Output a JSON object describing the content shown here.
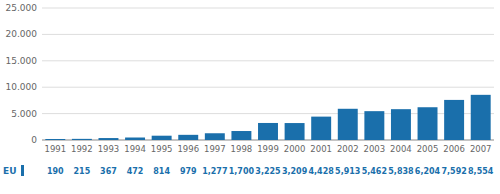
{
  "chart_data": {
    "type": "bar",
    "categories": [
      "1991",
      "1992",
      "1993",
      "1994",
      "1995",
      "1996",
      "1997",
      "1998",
      "1999",
      "2000",
      "2001",
      "2002",
      "2003",
      "2004",
      "2005",
      "2006",
      "2007"
    ],
    "series": [
      {
        "name": "EU",
        "color": "#1a6fab",
        "values": [
          190,
          215,
          367,
          472,
          814,
          979,
          1277,
          1700,
          3225,
          3209,
          4428,
          5913,
          5462,
          5838,
          6204,
          7592,
          8554
        ],
        "value_labels": [
          "190",
          "215",
          "367",
          "472",
          "814",
          "979",
          "1,277",
          "1,700",
          "3,225",
          "3,209",
          "4,428",
          "5,913",
          "5,462",
          "5,838",
          "6,204",
          "7,592",
          "8,554"
        ]
      }
    ],
    "ylim": [
      0,
      25000
    ],
    "yticks": [
      0,
      {
        "value": 5000,
        "label": "5.000"
      },
      {
        "value": 10000,
        "label": "10.000"
      },
      {
        "value": 15000,
        "label": "15.000"
      },
      {
        "value": 20000,
        "label": "20.000"
      },
      {
        "value": 25000,
        "label": "25.000"
      }
    ],
    "grid": true,
    "data_labels": true,
    "legend": "lower left"
  }
}
